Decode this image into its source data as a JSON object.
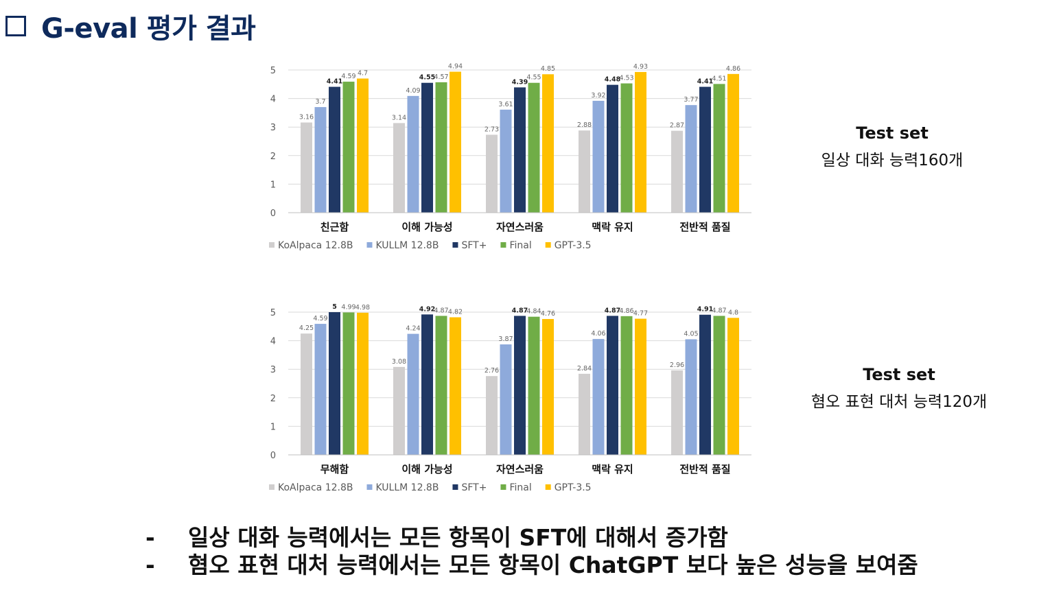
{
  "title": "G-eval 평가 결과",
  "side_notes": [
    {
      "line1": "Test set",
      "line2": "일상 대화 능력160개"
    },
    {
      "line1": "Test set",
      "line2": "혐오 표현 대처 능력120개"
    }
  ],
  "bullets": [
    {
      "dash": "-",
      "text": "일상 대화 능력에서는 모든 항목이 SFT에 대해서 증가함"
    },
    {
      "dash": "-",
      "text": "혐오 표현 대처 능력에서는 모든 항목이 ChatGPT 보다 높은 성능을 보여줌"
    }
  ],
  "colors": {
    "KoAlpaca 12.8B": "#d0cece",
    "KULLM 12.8B": "#8eaadb",
    "SFT+": "#203864",
    "Final": "#70ad47",
    "GPT-3.5": "#ffc000"
  },
  "chart_data": [
    {
      "type": "bar",
      "categories": [
        "친근함",
        "이해 가능성",
        "자연스러움",
        "맥락 유지",
        "전반적 품질"
      ],
      "series": [
        {
          "name": "KoAlpaca 12.8B",
          "values": [
            3.16,
            3.14,
            2.73,
            2.88,
            2.87
          ]
        },
        {
          "name": "KULLM 12.8B",
          "values": [
            3.7,
            4.09,
            3.61,
            3.92,
            3.77
          ]
        },
        {
          "name": "SFT+",
          "values": [
            4.41,
            4.55,
            4.39,
            4.48,
            4.41
          ]
        },
        {
          "name": "Final",
          "values": [
            4.59,
            4.57,
            4.55,
            4.53,
            4.51
          ]
        },
        {
          "name": "GPT-3.5",
          "values": [
            4.7,
            4.94,
            4.85,
            4.93,
            4.86
          ]
        }
      ],
      "ylim": [
        0,
        5
      ],
      "yticks": [
        0,
        1,
        2,
        3,
        4,
        5
      ],
      "grid": true,
      "legend": "bottom-left"
    },
    {
      "type": "bar",
      "categories": [
        "무해함",
        "이해 가능성",
        "자연스러움",
        "맥락 유지",
        "전반적 품질"
      ],
      "series": [
        {
          "name": "KoAlpaca 12.8B",
          "values": [
            4.25,
            3.08,
            2.76,
            2.84,
            2.96
          ]
        },
        {
          "name": "KULLM 12.8B",
          "values": [
            4.59,
            4.24,
            3.87,
            4.06,
            4.05
          ]
        },
        {
          "name": "SFT+",
          "values": [
            5,
            4.92,
            4.87,
            4.87,
            4.91
          ]
        },
        {
          "name": "Final",
          "values": [
            4.99,
            4.87,
            4.84,
            4.86,
            4.87
          ]
        },
        {
          "name": "GPT-3.5",
          "values": [
            4.98,
            4.82,
            4.76,
            4.77,
            4.8
          ]
        }
      ],
      "ylim": [
        0,
        5
      ],
      "yticks": [
        0,
        1,
        2,
        3,
        4,
        5
      ],
      "grid": true,
      "legend": "bottom-left"
    }
  ]
}
